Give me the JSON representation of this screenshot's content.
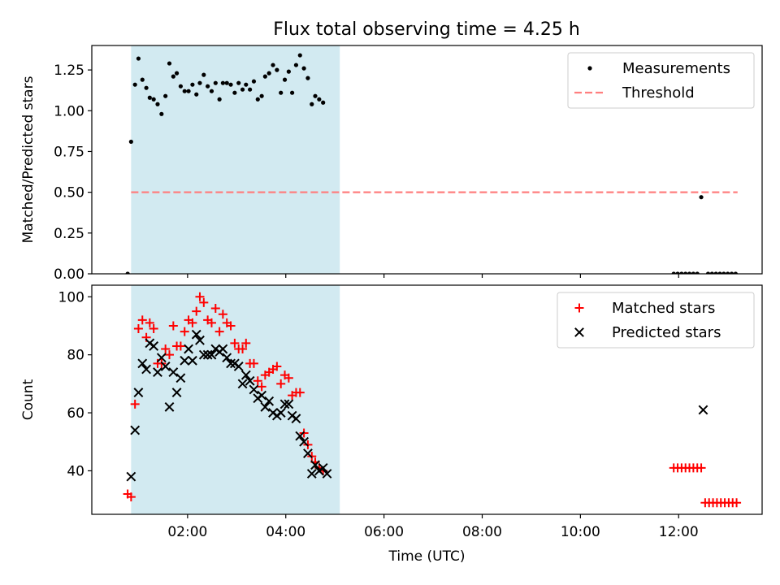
{
  "title": "Flux total observing time = 4.25 h",
  "colors": {
    "shade": "#add8e6",
    "matched": "#ff0000",
    "predicted": "#000000",
    "threshold": "#ff7f7f",
    "measurement": "#000000"
  },
  "chart_data": [
    {
      "type": "scatter",
      "panel": "top",
      "title": "Flux total observing time = 4.25 h",
      "ylabel": "Matched/Predicted stars",
      "xlabel": "",
      "xlim": [
        0.05,
        13.7
      ],
      "ylim": [
        0,
        1.4
      ],
      "yticks": [
        0.0,
        0.25,
        0.5,
        0.75,
        1.0,
        1.25
      ],
      "ytick_labels": [
        "0.00",
        "0.25",
        "0.50",
        "0.75",
        "1.00",
        "1.25"
      ],
      "xticks": [
        2,
        4,
        6,
        8,
        10,
        12
      ],
      "shaded_span": [
        0.85,
        5.1
      ],
      "legend": {
        "placement": "top-right",
        "entries": [
          "Measurements",
          "Threshold"
        ]
      },
      "threshold": {
        "name": "Threshold",
        "value": 0.5,
        "x_range": [
          0.85,
          13.2
        ]
      },
      "series": [
        {
          "name": "Measurements",
          "marker": "dot",
          "points": [
            [
              0.78,
              0.0
            ],
            [
              0.85,
              0.81
            ],
            [
              0.93,
              1.16
            ],
            [
              1.0,
              1.32
            ],
            [
              1.08,
              1.19
            ],
            [
              1.16,
              1.14
            ],
            [
              1.23,
              1.08
            ],
            [
              1.31,
              1.07
            ],
            [
              1.39,
              1.04
            ],
            [
              1.47,
              0.98
            ],
            [
              1.55,
              1.09
            ],
            [
              1.63,
              1.29
            ],
            [
              1.71,
              1.21
            ],
            [
              1.78,
              1.23
            ],
            [
              1.86,
              1.15
            ],
            [
              1.94,
              1.12
            ],
            [
              2.02,
              1.12
            ],
            [
              2.1,
              1.16
            ],
            [
              2.18,
              1.1
            ],
            [
              2.25,
              1.17
            ],
            [
              2.33,
              1.22
            ],
            [
              2.41,
              1.15
            ],
            [
              2.49,
              1.12
            ],
            [
              2.57,
              1.17
            ],
            [
              2.65,
              1.07
            ],
            [
              2.72,
              1.17
            ],
            [
              2.8,
              1.17
            ],
            [
              2.88,
              1.16
            ],
            [
              2.96,
              1.11
            ],
            [
              3.04,
              1.17
            ],
            [
              3.12,
              1.13
            ],
            [
              3.19,
              1.16
            ],
            [
              3.27,
              1.13
            ],
            [
              3.35,
              1.18
            ],
            [
              3.43,
              1.07
            ],
            [
              3.51,
              1.09
            ],
            [
              3.58,
              1.21
            ],
            [
              3.66,
              1.23
            ],
            [
              3.74,
              1.28
            ],
            [
              3.82,
              1.25
            ],
            [
              3.9,
              1.11
            ],
            [
              3.98,
              1.19
            ],
            [
              4.06,
              1.24
            ],
            [
              4.13,
              1.11
            ],
            [
              4.21,
              1.28
            ],
            [
              4.29,
              1.34
            ],
            [
              4.37,
              1.26
            ],
            [
              4.45,
              1.2
            ],
            [
              4.53,
              1.04
            ],
            [
              4.6,
              1.09
            ],
            [
              4.68,
              1.07
            ],
            [
              4.76,
              1.05
            ],
            [
              11.9,
              0.0
            ],
            [
              11.98,
              0.0
            ],
            [
              12.06,
              0.0
            ],
            [
              12.14,
              0.0
            ],
            [
              12.22,
              0.0
            ],
            [
              12.3,
              0.0
            ],
            [
              12.38,
              0.0
            ],
            [
              12.46,
              0.47
            ],
            [
              12.6,
              0.0
            ],
            [
              12.68,
              0.0
            ],
            [
              12.76,
              0.0
            ],
            [
              12.84,
              0.0
            ],
            [
              12.92,
              0.0
            ],
            [
              13.0,
              0.0
            ],
            [
              13.08,
              0.0
            ],
            [
              13.16,
              0.0
            ]
          ]
        }
      ]
    },
    {
      "type": "scatter",
      "panel": "bottom",
      "title": "",
      "ylabel": "Count",
      "xlabel": "Time (UTC)",
      "xlim": [
        0.05,
        13.7
      ],
      "ylim": [
        25,
        104
      ],
      "yticks": [
        40,
        60,
        80,
        100
      ],
      "ytick_labels": [
        "40",
        "60",
        "80",
        "100"
      ],
      "xticks": [
        2,
        4,
        6,
        8,
        10,
        12
      ],
      "xtick_labels": [
        "02:00",
        "04:00",
        "06:00",
        "08:00",
        "10:00",
        "12:00"
      ],
      "shaded_span": [
        0.85,
        5.1
      ],
      "legend": {
        "placement": "top-right",
        "entries": [
          "Matched stars",
          "Predicted stars"
        ]
      },
      "series": [
        {
          "name": "Matched stars",
          "marker": "plus",
          "points": [
            [
              0.78,
              32
            ],
            [
              0.85,
              31
            ],
            [
              0.93,
              63
            ],
            [
              1.0,
              89
            ],
            [
              1.08,
              92
            ],
            [
              1.16,
              86
            ],
            [
              1.23,
              91
            ],
            [
              1.31,
              89
            ],
            [
              1.39,
              77
            ],
            [
              1.47,
              77
            ],
            [
              1.55,
              82
            ],
            [
              1.63,
              80
            ],
            [
              1.71,
              90
            ],
            [
              1.78,
              83
            ],
            [
              1.86,
              83
            ],
            [
              1.94,
              88
            ],
            [
              2.02,
              92
            ],
            [
              2.1,
              91
            ],
            [
              2.18,
              95
            ],
            [
              2.25,
              100
            ],
            [
              2.33,
              98
            ],
            [
              2.41,
              92
            ],
            [
              2.49,
              91
            ],
            [
              2.57,
              96
            ],
            [
              2.65,
              88
            ],
            [
              2.72,
              94
            ],
            [
              2.8,
              91
            ],
            [
              2.88,
              90
            ],
            [
              2.96,
              84
            ],
            [
              3.04,
              82
            ],
            [
              3.12,
              82
            ],
            [
              3.19,
              84
            ],
            [
              3.27,
              77
            ],
            [
              3.35,
              77
            ],
            [
              3.43,
              71
            ],
            [
              3.51,
              69
            ],
            [
              3.58,
              73
            ],
            [
              3.66,
              74
            ],
            [
              3.74,
              75
            ],
            [
              3.82,
              76
            ],
            [
              3.9,
              70
            ],
            [
              3.98,
              73
            ],
            [
              4.06,
              72
            ],
            [
              4.13,
              66
            ],
            [
              4.21,
              67
            ],
            [
              4.29,
              67
            ],
            [
              4.37,
              53
            ],
            [
              4.45,
              49
            ],
            [
              4.53,
              45
            ],
            [
              4.6,
              43
            ],
            [
              4.68,
              41
            ],
            [
              4.76,
              40
            ],
            [
              11.9,
              41
            ],
            [
              11.98,
              41
            ],
            [
              12.06,
              41
            ],
            [
              12.14,
              41
            ],
            [
              12.22,
              41
            ],
            [
              12.3,
              41
            ],
            [
              12.38,
              41
            ],
            [
              12.46,
              41
            ],
            [
              12.54,
              29
            ],
            [
              12.62,
              29
            ],
            [
              12.7,
              29
            ],
            [
              12.78,
              29
            ],
            [
              12.86,
              29
            ],
            [
              12.94,
              29
            ],
            [
              13.02,
              29
            ],
            [
              13.1,
              29
            ],
            [
              13.18,
              29
            ]
          ]
        },
        {
          "name": "Predicted stars",
          "marker": "x",
          "points": [
            [
              0.85,
              38
            ],
            [
              0.93,
              54
            ],
            [
              1.0,
              67
            ],
            [
              1.08,
              77
            ],
            [
              1.16,
              75
            ],
            [
              1.23,
              84
            ],
            [
              1.31,
              83
            ],
            [
              1.39,
              74
            ],
            [
              1.47,
              79
            ],
            [
              1.55,
              76
            ],
            [
              1.63,
              62
            ],
            [
              1.71,
              74
            ],
            [
              1.78,
              67
            ],
            [
              1.86,
              72
            ],
            [
              1.94,
              78
            ],
            [
              2.02,
              82
            ],
            [
              2.1,
              78
            ],
            [
              2.18,
              87
            ],
            [
              2.25,
              85
            ],
            [
              2.33,
              80
            ],
            [
              2.41,
              80
            ],
            [
              2.49,
              80
            ],
            [
              2.57,
              82
            ],
            [
              2.65,
              81
            ],
            [
              2.72,
              82
            ],
            [
              2.8,
              79
            ],
            [
              2.88,
              77
            ],
            [
              2.96,
              77
            ],
            [
              3.04,
              76
            ],
            [
              3.12,
              70
            ],
            [
              3.19,
              73
            ],
            [
              3.27,
              71
            ],
            [
              3.35,
              68
            ],
            [
              3.43,
              65
            ],
            [
              3.51,
              66
            ],
            [
              3.58,
              62
            ],
            [
              3.66,
              64
            ],
            [
              3.74,
              60
            ],
            [
              3.82,
              59
            ],
            [
              3.9,
              60
            ],
            [
              3.98,
              63
            ],
            [
              4.06,
              63
            ],
            [
              4.13,
              59
            ],
            [
              4.21,
              58
            ],
            [
              4.29,
              52
            ],
            [
              4.37,
              50
            ],
            [
              4.45,
              46
            ],
            [
              4.53,
              39
            ],
            [
              4.6,
              42
            ],
            [
              4.68,
              40
            ],
            [
              4.76,
              41
            ],
            [
              4.84,
              39
            ],
            [
              12.5,
              61
            ]
          ]
        }
      ]
    }
  ]
}
